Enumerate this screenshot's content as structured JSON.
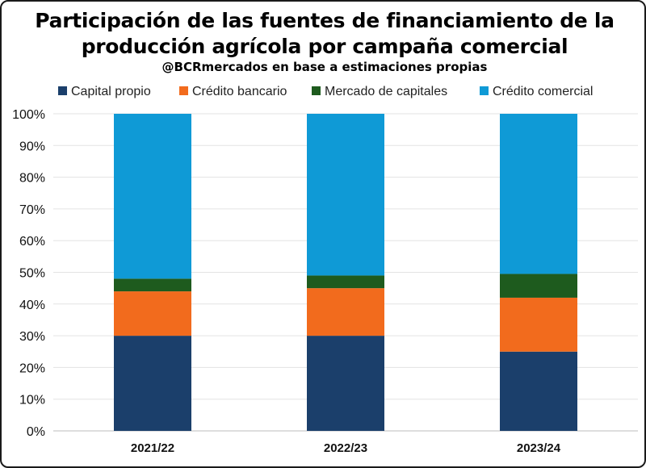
{
  "chart_data": {
    "type": "bar",
    "stacked": true,
    "title_line1": "Participación de las fuentes de financiamiento de la",
    "title_line2": "producción agrícola por campaña comercial",
    "subtitle": "@BCRmercados  en base a estimaciones propias",
    "categories": [
      "2021/22",
      "2022/23",
      "2023/24"
    ],
    "series": [
      {
        "name": "Capital propio",
        "color": "#1b3f6b",
        "values": [
          30,
          30,
          25
        ]
      },
      {
        "name": "Crédito bancario",
        "color": "#f26b1d",
        "values": [
          14,
          15,
          17
        ]
      },
      {
        "name": "Mercado de capitales",
        "color": "#1e5b1e",
        "values": [
          4,
          4,
          7.5
        ]
      },
      {
        "name": "Crédito comercial",
        "color": "#0f9ad6",
        "values": [
          52,
          51,
          50.5
        ]
      }
    ],
    "yticks": [
      "0%",
      "10%",
      "20%",
      "30%",
      "40%",
      "50%",
      "60%",
      "70%",
      "80%",
      "90%",
      "100%"
    ],
    "ylim": [
      0,
      100
    ],
    "xlabel": "",
    "ylabel": "",
    "grid": true,
    "legend_position": "top"
  }
}
